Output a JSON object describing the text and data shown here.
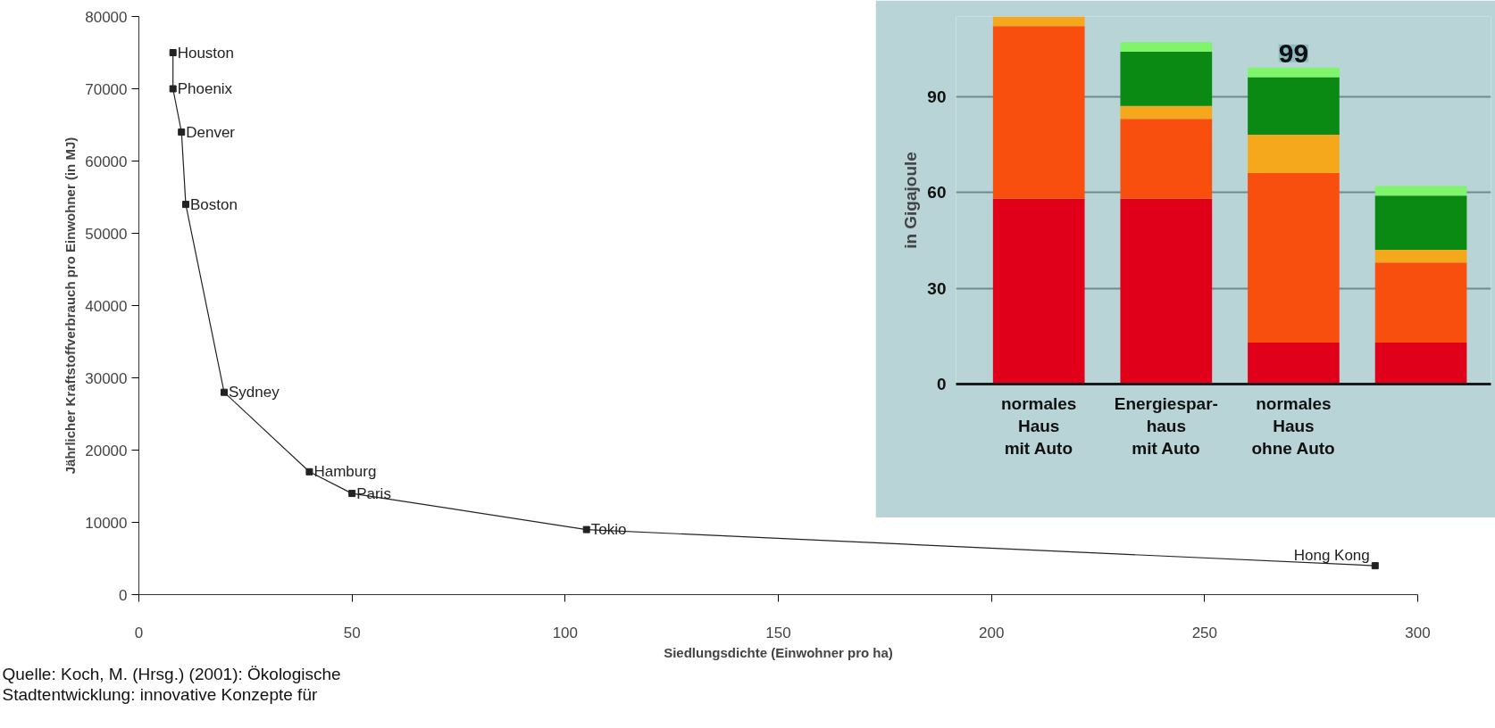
{
  "chart_data": [
    {
      "type": "line",
      "xlabel": "Siedlungsdichte (Einwohner pro ha)",
      "ylabel": "Jährlicher Kraftstoffverbrauch pro Einwohner (in MJ)",
      "x": [
        8,
        8,
        10,
        11,
        20,
        40,
        50,
        105,
        290
      ],
      "series": [
        {
          "color": "#222222",
          "values": [
            75000,
            70000,
            64000,
            54000,
            28000,
            17000,
            14000,
            9000,
            4000
          ]
        }
      ],
      "marker": "square",
      "grid": false,
      "xlim": [
        0,
        300
      ],
      "xticks": [
        0,
        50,
        100,
        150,
        200,
        250,
        300
      ],
      "ylim": [
        0,
        80000
      ],
      "yticks": [
        0,
        10000,
        20000,
        30000,
        40000,
        50000,
        60000,
        70000,
        80000
      ],
      "annotations": [
        {
          "text": "Houston",
          "x": 8,
          "y": 75000
        },
        {
          "text": "Phoenix",
          "x": 8,
          "y": 70000
        },
        {
          "text": "Denver",
          "x": 10,
          "y": 64000
        },
        {
          "text": "Boston",
          "x": 11,
          "y": 54000
        },
        {
          "text": "Sydney",
          "x": 20,
          "y": 28000
        },
        {
          "text": "Hamburg",
          "x": 40,
          "y": 17000
        },
        {
          "text": "Paris",
          "x": 50,
          "y": 14000
        },
        {
          "text": "Tokio",
          "x": 105,
          "y": 9000
        },
        {
          "text": "Hong Kong",
          "x": 290,
          "y": 4000
        },
        "Quelle: Koch, M. (Hrsg.) (2001): Ökologische",
        "Stadtentwicklung: innovative Konzepte für"
      ]
    },
    {
      "type": "bar",
      "stacked": true,
      "ylabel": "in Gigajoule",
      "categories": [
        "normales\nHaus\nmit Auto",
        "Energiespar-\nhaus\nmit Auto",
        "normales\nHaus\nohne Auto",
        null
      ],
      "series": [
        {
          "color": "#e0001a",
          "values": [
            58,
            58,
            13,
            13
          ]
        },
        {
          "color": "#f84f0f",
          "values": [
            54,
            25,
            53,
            25
          ]
        },
        {
          "color": "#f5a81c",
          "values": [
            3,
            4,
            12,
            4
          ]
        },
        {
          "color": "#0a8a12",
          "values": [
            null,
            17,
            18,
            17
          ]
        },
        {
          "color": "#7ef56a",
          "values": [
            null,
            3,
            3,
            3
          ]
        }
      ],
      "ylim": [
        0,
        115
      ],
      "yticks": [
        0,
        30,
        60,
        90
      ],
      "grid": "y",
      "totals": [
        null,
        null,
        "99",
        null
      ]
    }
  ]
}
